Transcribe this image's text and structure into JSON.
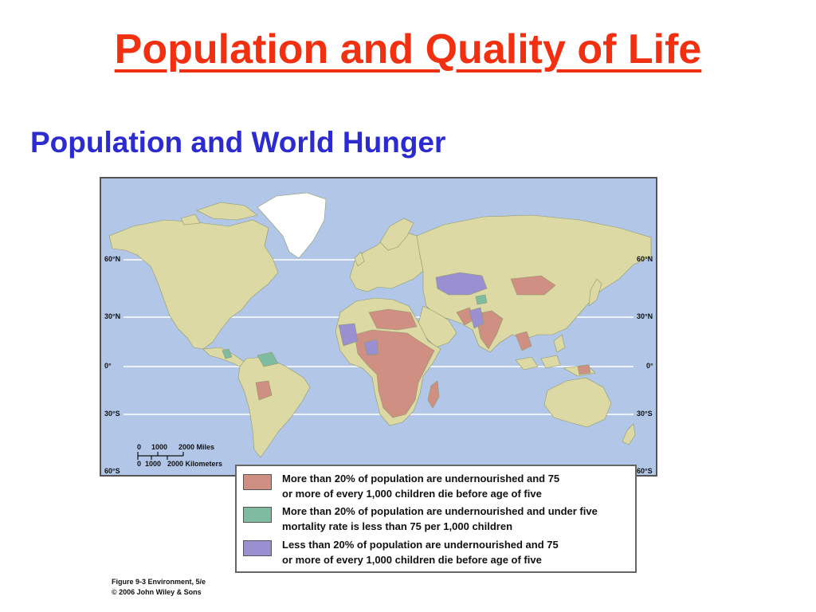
{
  "slide": {
    "title": "Population and Quality of Life",
    "subtitle": "Population and World Hunger"
  },
  "map": {
    "latitude_labels": [
      "60°N",
      "30°N",
      "0°",
      "30°S",
      "60°S"
    ],
    "scale": {
      "miles_ticks": [
        "0",
        "1000",
        "2000 Miles"
      ],
      "km_ticks": [
        "0",
        "1000",
        "2000 Kilometers"
      ]
    },
    "colors": {
      "ocean": "#b2c6e8",
      "land": "#dcd9a4",
      "greenland": "#ffffff",
      "category_1": "#cf8f82",
      "category_2": "#7fbba0",
      "category_3": "#9a8fd0"
    }
  },
  "legend": {
    "items": [
      {
        "line1": "More than 20% of population are undernourished and 75",
        "line2": "or more of every 1,000 children die before age of five",
        "color": "#cf8f82"
      },
      {
        "line1": "More than 20% of population are undernourished and under five",
        "line2": "mortality rate is less than 75 per 1,000 children",
        "color": "#7fbba0"
      },
      {
        "line1": "Less than 20% of population are undernourished and 75",
        "line2": "or more of every 1,000 children die before age of five",
        "color": "#9a8fd0"
      }
    ]
  },
  "credit": {
    "line1": "Figure 9-3  Environment, 5/e",
    "line2": "© 2006 John Wiley & Sons"
  }
}
